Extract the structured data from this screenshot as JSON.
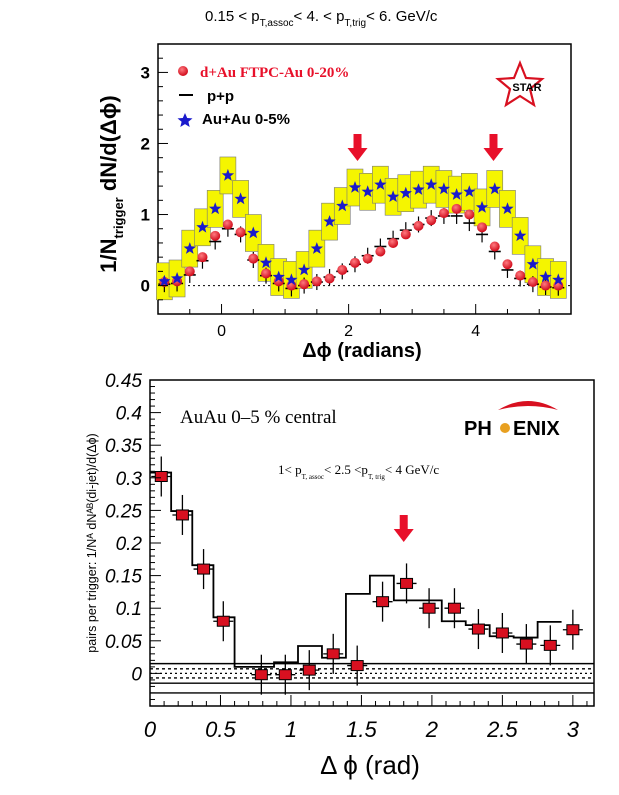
{
  "top": {
    "title": "0.15 < p",
    "title_sub1": "T,assoc",
    "title_mid": "< 4. < p",
    "title_sub2": "T,trig",
    "title_end": "< 6. GeV/c",
    "ylabel_main": "1/N",
    "ylabel_sub": "trigger",
    "ylabel_end": " dN/d(Δϕ)",
    "xlabel": "Δϕ (radians)",
    "logo": "STAR",
    "legend": [
      "d+Au FTPC-Au 0-20%",
      "p+p",
      "Au+Au 0-5%"
    ],
    "colors": {
      "dAu": "#e8102a",
      "pp": "#000000",
      "AuAu": "#1a1acc",
      "band": "#f5f500"
    }
  },
  "bottom": {
    "label": "AuAu 0–5 % central",
    "logo_left": "PH",
    "logo_right": "ENIX",
    "cut_1": "1< p",
    "cut_sub1": "T, assoc",
    "cut_2": "< 2.5 <p",
    "cut_sub2": "T, trig",
    "cut_3": "< 4 GeV/c",
    "ylabel": "pairs per trigger: 1/Nᴬ dNᴬᴮ(di-jet)/d(Δϕ)",
    "xlabel": "Δ ϕ (rad)",
    "colors": {
      "marker": "#d81020",
      "arrow": "#e8102a"
    }
  },
  "chart_data": [
    {
      "type": "scatter",
      "xlabel": "Δϕ (radians)",
      "ylabel": "1/Ntrigger dN/d(Δϕ)",
      "xlim": [
        -1.0,
        5.5
      ],
      "ylim": [
        -0.4,
        3.4
      ],
      "xticks": [
        "0",
        "2",
        "4"
      ],
      "yticks": [
        "0",
        "1",
        "2",
        "3"
      ],
      "arrows_at_x": [
        2.14,
        4.28
      ],
      "series": [
        {
          "name": "d+Au FTPC-Au 0-20%",
          "marker": "circle",
          "x": [
            -0.9,
            -0.7,
            -0.5,
            -0.3,
            -0.1,
            0.1,
            0.3,
            0.5,
            0.7,
            0.9,
            1.1,
            1.3,
            1.5,
            1.7,
            1.9,
            2.1,
            2.3,
            2.5,
            2.7,
            2.9,
            3.1,
            3.3,
            3.5,
            3.7,
            3.9,
            4.1,
            4.3,
            4.5,
            4.7,
            4.9,
            5.1,
            5.3
          ],
          "y": [
            0.05,
            0.06,
            0.2,
            0.4,
            0.7,
            0.86,
            0.75,
            0.38,
            0.17,
            0.06,
            0.0,
            0.02,
            0.06,
            0.1,
            0.22,
            0.32,
            0.38,
            0.48,
            0.6,
            0.72,
            0.84,
            0.92,
            1.02,
            1.08,
            1.0,
            0.82,
            0.55,
            0.3,
            0.14,
            0.05,
            0.0,
            0.0
          ]
        },
        {
          "name": "p+p",
          "marker": "cross",
          "x": [
            -0.9,
            -0.7,
            -0.5,
            -0.3,
            -0.1,
            0.1,
            0.3,
            0.5,
            0.7,
            0.9,
            1.1,
            1.3,
            1.5,
            1.7,
            1.9,
            2.1,
            2.3,
            2.5,
            2.7,
            2.9,
            3.1,
            3.3,
            3.5,
            3.7,
            3.9,
            4.1,
            4.3,
            4.5,
            4.7,
            4.9,
            5.1,
            5.3
          ],
          "y": [
            0.02,
            0.03,
            0.15,
            0.35,
            0.62,
            0.8,
            0.72,
            0.36,
            0.14,
            0.03,
            -0.04,
            0.0,
            0.05,
            0.12,
            0.2,
            0.3,
            0.42,
            0.55,
            0.66,
            0.78,
            0.86,
            0.95,
            0.98,
            0.98,
            0.88,
            0.72,
            0.48,
            0.22,
            0.1,
            0.02,
            -0.02,
            -0.03
          ]
        },
        {
          "name": "Au+Au 0-5%",
          "marker": "star",
          "x": [
            -0.9,
            -0.7,
            -0.5,
            -0.3,
            -0.1,
            0.1,
            0.3,
            0.5,
            0.7,
            0.9,
            1.1,
            1.3,
            1.5,
            1.7,
            1.9,
            2.1,
            2.3,
            2.5,
            2.7,
            2.9,
            3.1,
            3.3,
            3.5,
            3.7,
            3.9,
            4.1,
            4.3,
            4.5,
            4.7,
            4.9,
            5.1,
            5.3
          ],
          "y": [
            0.06,
            0.1,
            0.52,
            0.82,
            1.08,
            1.55,
            1.22,
            0.74,
            0.32,
            0.12,
            0.08,
            0.22,
            0.52,
            0.9,
            1.12,
            1.38,
            1.32,
            1.42,
            1.25,
            1.3,
            1.35,
            1.42,
            1.36,
            1.28,
            1.32,
            1.1,
            1.36,
            1.08,
            0.7,
            0.3,
            0.12,
            0.08
          ]
        }
      ]
    },
    {
      "type": "scatter",
      "xlabel": "Δ ϕ (rad)",
      "ylabel": "pairs per trigger: 1/NA dNAB(di-jet)/d(Δϕ)",
      "xlim": [
        0,
        3.15
      ],
      "ylim": [
        -0.05,
        0.45
      ],
      "xticks": [
        "0",
        "0.5",
        "1",
        "1.5",
        "2",
        "2.5",
        "3"
      ],
      "yticks": [
        "0",
        "0.05",
        "0.1",
        "0.15",
        "0.2",
        "0.25",
        "0.3",
        "0.35",
        "0.4",
        "0.45"
      ],
      "arrow_at_x": 1.8,
      "series": [
        {
          "name": "AuAu 0–5 % central",
          "marker": "square",
          "x": [
            0.08,
            0.23,
            0.38,
            0.52,
            0.79,
            0.96,
            1.13,
            1.3,
            1.47,
            1.65,
            1.82,
            1.98,
            2.16,
            2.33,
            2.5,
            2.67,
            2.84,
            3.0
          ],
          "y": [
            0.302,
            0.243,
            0.16,
            0.08,
            -0.002,
            -0.002,
            0.005,
            0.03,
            0.012,
            0.11,
            0.138,
            0.1,
            0.1,
            0.068,
            0.062,
            0.045,
            0.043,
            0.067
          ]
        }
      ]
    }
  ]
}
